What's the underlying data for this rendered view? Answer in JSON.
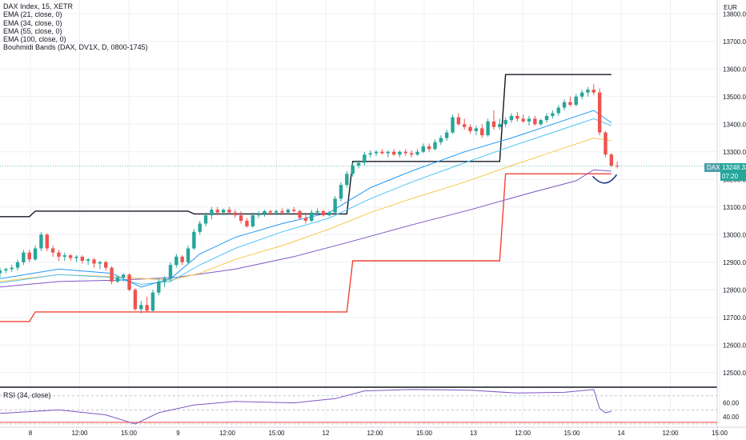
{
  "legend": {
    "title": "DAX Index, 15, XETR",
    "indicators": [
      "EMA (21, close, 0)",
      "EMA (34, close, 0)",
      "EMA (55, close, 0)",
      "EMA (100, close, 0)",
      "Bouhmidi Bands (DAX, DV1X, D, 0800-1745)"
    ]
  },
  "rsi_label": "RSI (34, close)",
  "currency": "EUR",
  "price_scale": [
    "13800.00",
    "13700.00",
    "13600.00",
    "13500.00",
    "13400.00",
    "13300.00",
    "13200.00",
    "13100.00",
    "13000.00",
    "12900.00",
    "12800.00",
    "12700.00",
    "12600.00",
    "12500.00"
  ],
  "rsi_scale": [
    "60.00",
    "40.00"
  ],
  "time_labels": [
    "8",
    "12:00",
    "15:00",
    "9",
    "12:00",
    "15:00",
    "12",
    "12:00",
    "15:00",
    "13",
    "12:00",
    "15:00",
    "14",
    "12:00",
    "15:00"
  ],
  "price_tag": {
    "symbol": "DAX",
    "price": "13248.33",
    "countdown": "07:20"
  },
  "colors": {
    "up": "#26a69a",
    "down": "#ef5350",
    "ema21": "#2196f3",
    "ema34": "#4fc3f7",
    "ema55": "#f9c74f",
    "ema100": "#7e57c2",
    "band_upper": "#131722",
    "band_lower": "#f44336",
    "rsi": "#7e57c2",
    "annotation": "#1e3a8a"
  },
  "chart_data": {
    "type": "line",
    "units": "EUR",
    "price_range": [
      12450,
      13850
    ],
    "x_range": [
      0,
      122
    ],
    "candles": [
      [
        12860,
        12880,
        12845,
        12870
      ],
      [
        12870,
        12880,
        12860,
        12875
      ],
      [
        12875,
        12890,
        12865,
        12880
      ],
      [
        12880,
        12910,
        12870,
        12900
      ],
      [
        12900,
        12945,
        12890,
        12935
      ],
      [
        12935,
        12945,
        12900,
        12910
      ],
      [
        12910,
        12960,
        12905,
        12950
      ],
      [
        12950,
        13010,
        12940,
        13000
      ],
      [
        13000,
        13005,
        12940,
        12950
      ],
      [
        12950,
        12960,
        12920,
        12935
      ],
      [
        12935,
        12945,
        12905,
        12920
      ],
      [
        12920,
        12935,
        12905,
        12925
      ],
      [
        12925,
        12930,
        12905,
        12915
      ],
      [
        12915,
        12925,
        12900,
        12920
      ],
      [
        12920,
        12925,
        12895,
        12905
      ],
      [
        12905,
        12915,
        12890,
        12910
      ],
      [
        12910,
        12915,
        12880,
        12895
      ],
      [
        12895,
        12905,
        12875,
        12900
      ],
      [
        12900,
        12905,
        12870,
        12880
      ],
      [
        12880,
        12885,
        12820,
        12830
      ],
      [
        12830,
        12850,
        12825,
        12845
      ],
      [
        12845,
        12860,
        12830,
        12855
      ],
      [
        12855,
        12860,
        12795,
        12800
      ],
      [
        12800,
        12805,
        12725,
        12730
      ],
      [
        12730,
        12760,
        12715,
        12745
      ],
      [
        12745,
        12775,
        12720,
        12725
      ],
      [
        12725,
        12800,
        12720,
        12790
      ],
      [
        12790,
        12840,
        12780,
        12830
      ],
      [
        12830,
        12850,
        12810,
        12840
      ],
      [
        12840,
        12900,
        12830,
        12890
      ],
      [
        12890,
        12930,
        12880,
        12920
      ],
      [
        12920,
        12925,
        12890,
        12900
      ],
      [
        12900,
        12960,
        12895,
        12950
      ],
      [
        12950,
        13020,
        12945,
        13010
      ],
      [
        13010,
        13050,
        13000,
        13040
      ],
      [
        13040,
        13080,
        13030,
        13070
      ],
      [
        13070,
        13100,
        13055,
        13090
      ],
      [
        13090,
        13100,
        13070,
        13080
      ],
      [
        13080,
        13095,
        13070,
        13090
      ],
      [
        13090,
        13100,
        13075,
        13080
      ],
      [
        13080,
        13090,
        13060,
        13070
      ],
      [
        13070,
        13085,
        13040,
        13050
      ],
      [
        13050,
        13060,
        13025,
        13030
      ],
      [
        13030,
        13080,
        13025,
        13070
      ],
      [
        13070,
        13085,
        13060,
        13075
      ],
      [
        13075,
        13090,
        13065,
        13085
      ],
      [
        13085,
        13090,
        13070,
        13080
      ],
      [
        13080,
        13090,
        13070,
        13085
      ],
      [
        13085,
        13095,
        13075,
        13080
      ],
      [
        13080,
        13095,
        13075,
        13090
      ],
      [
        13090,
        13100,
        13080,
        13085
      ],
      [
        13085,
        13090,
        13055,
        13060
      ],
      [
        13060,
        13080,
        13040,
        13050
      ],
      [
        13050,
        13090,
        13045,
        13080
      ],
      [
        13080,
        13095,
        13070,
        13085
      ],
      [
        13085,
        13090,
        13065,
        13070
      ],
      [
        13070,
        13085,
        13065,
        13080
      ],
      [
        13080,
        13140,
        13075,
        13130
      ],
      [
        13130,
        13190,
        13120,
        13180
      ],
      [
        13180,
        13230,
        13170,
        13220
      ],
      [
        13220,
        13260,
        13210,
        13250
      ],
      [
        13250,
        13270,
        13240,
        13260
      ],
      [
        13260,
        13300,
        13250,
        13290
      ],
      [
        13290,
        13305,
        13280,
        13295
      ],
      [
        13295,
        13305,
        13285,
        13300
      ],
      [
        13300,
        13310,
        13290,
        13295
      ],
      [
        13295,
        13305,
        13280,
        13300
      ],
      [
        13300,
        13310,
        13285,
        13290
      ],
      [
        13290,
        13305,
        13280,
        13300
      ],
      [
        13300,
        13310,
        13285,
        13295
      ],
      [
        13295,
        13305,
        13280,
        13290
      ],
      [
        13290,
        13310,
        13285,
        13300
      ],
      [
        13300,
        13330,
        13295,
        13320
      ],
      [
        13320,
        13330,
        13300,
        13310
      ],
      [
        13310,
        13345,
        13305,
        13335
      ],
      [
        13335,
        13360,
        13325,
        13350
      ],
      [
        13350,
        13380,
        13340,
        13370
      ],
      [
        13370,
        13435,
        13365,
        13425
      ],
      [
        13425,
        13440,
        13395,
        13400
      ],
      [
        13400,
        13420,
        13380,
        13390
      ],
      [
        13390,
        13400,
        13365,
        13375
      ],
      [
        13375,
        13395,
        13360,
        13385
      ],
      [
        13385,
        13400,
        13350,
        13360
      ],
      [
        13360,
        13420,
        13355,
        13410
      ],
      [
        13410,
        13450,
        13380,
        13390
      ],
      [
        13390,
        13420,
        13380,
        13400
      ],
      [
        13400,
        13425,
        13390,
        13415
      ],
      [
        13415,
        13440,
        13405,
        13430
      ],
      [
        13430,
        13445,
        13410,
        13420
      ],
      [
        13420,
        13435,
        13405,
        13410
      ],
      [
        13410,
        13430,
        13395,
        13420
      ],
      [
        13420,
        13430,
        13395,
        13400
      ],
      [
        13400,
        13420,
        13395,
        13415
      ],
      [
        13415,
        13440,
        13405,
        13430
      ],
      [
        13430,
        13450,
        13420,
        13440
      ],
      [
        13440,
        13470,
        13430,
        13460
      ],
      [
        13460,
        13490,
        13450,
        13480
      ],
      [
        13480,
        13500,
        13465,
        13470
      ],
      [
        13470,
        13510,
        13465,
        13500
      ],
      [
        13500,
        13525,
        13490,
        13515
      ],
      [
        13515,
        13535,
        13500,
        13525
      ],
      [
        13525,
        13545,
        13505,
        13515
      ],
      [
        13515,
        13530,
        13360,
        13370
      ],
      [
        13370,
        13375,
        13280,
        13290
      ],
      [
        13290,
        13295,
        13245,
        13250
      ],
      [
        13250,
        13265,
        13240,
        13248
      ]
    ],
    "ema21": [
      [
        0,
        12840
      ],
      [
        10,
        12875
      ],
      [
        19,
        12860
      ],
      [
        24,
        12810
      ],
      [
        29,
        12840
      ],
      [
        34,
        12930
      ],
      [
        40,
        12990
      ],
      [
        48,
        13040
      ],
      [
        56,
        13080
      ],
      [
        63,
        13170
      ],
      [
        70,
        13230
      ],
      [
        79,
        13300
      ],
      [
        87,
        13350
      ],
      [
        94,
        13400
      ],
      [
        101,
        13450
      ],
      [
        104,
        13405
      ]
    ],
    "ema34": [
      [
        0,
        12825
      ],
      [
        10,
        12855
      ],
      [
        19,
        12845
      ],
      [
        24,
        12820
      ],
      [
        29,
        12830
      ],
      [
        34,
        12890
      ],
      [
        40,
        12950
      ],
      [
        48,
        13010
      ],
      [
        56,
        13060
      ],
      [
        63,
        13130
      ],
      [
        70,
        13190
      ],
      [
        79,
        13260
      ],
      [
        87,
        13320
      ],
      [
        94,
        13370
      ],
      [
        101,
        13420
      ],
      [
        104,
        13395
      ]
    ],
    "ema55": [
      [
        0,
        12830
      ],
      [
        10,
        12855
      ],
      [
        19,
        12848
      ],
      [
        29,
        12835
      ],
      [
        34,
        12860
      ],
      [
        40,
        12910
      ],
      [
        48,
        12960
      ],
      [
        56,
        13020
      ],
      [
        63,
        13080
      ],
      [
        70,
        13130
      ],
      [
        79,
        13190
      ],
      [
        87,
        13250
      ],
      [
        94,
        13300
      ],
      [
        101,
        13350
      ],
      [
        104,
        13340
      ]
    ],
    "ema100": [
      [
        0,
        12810
      ],
      [
        10,
        12830
      ],
      [
        20,
        12835
      ],
      [
        30,
        12845
      ],
      [
        40,
        12875
      ],
      [
        50,
        12920
      ],
      [
        58,
        12965
      ],
      [
        70,
        13035
      ],
      [
        80,
        13090
      ],
      [
        90,
        13150
      ],
      [
        98,
        13195
      ],
      [
        101,
        13235
      ],
      [
        104,
        13230
      ]
    ],
    "band_upper": [
      [
        0,
        13065
      ],
      [
        5,
        13065
      ],
      [
        6,
        13085
      ],
      [
        32,
        13085
      ],
      [
        33,
        13075
      ],
      [
        59,
        13075
      ],
      [
        60,
        13265
      ],
      [
        85,
        13265
      ],
      [
        86,
        13580
      ],
      [
        104,
        13580
      ]
    ],
    "band_lower": [
      [
        0,
        12685
      ],
      [
        5,
        12685
      ],
      [
        6,
        12720
      ],
      [
        59,
        12720
      ],
      [
        60,
        12905
      ],
      [
        85,
        12905
      ],
      [
        86,
        13220
      ],
      [
        104,
        13220
      ]
    ],
    "rsi": [
      [
        0,
        45
      ],
      [
        10,
        50
      ],
      [
        18,
        43
      ],
      [
        23,
        30
      ],
      [
        27,
        46
      ],
      [
        33,
        57
      ],
      [
        40,
        62
      ],
      [
        50,
        60
      ],
      [
        57,
        66
      ],
      [
        62,
        77
      ],
      [
        70,
        79
      ],
      [
        80,
        78
      ],
      [
        88,
        74
      ],
      [
        96,
        75
      ],
      [
        101,
        79
      ],
      [
        102,
        52
      ],
      [
        103,
        46
      ],
      [
        104,
        48
      ]
    ],
    "rsi_range": [
      30,
      80
    ]
  }
}
